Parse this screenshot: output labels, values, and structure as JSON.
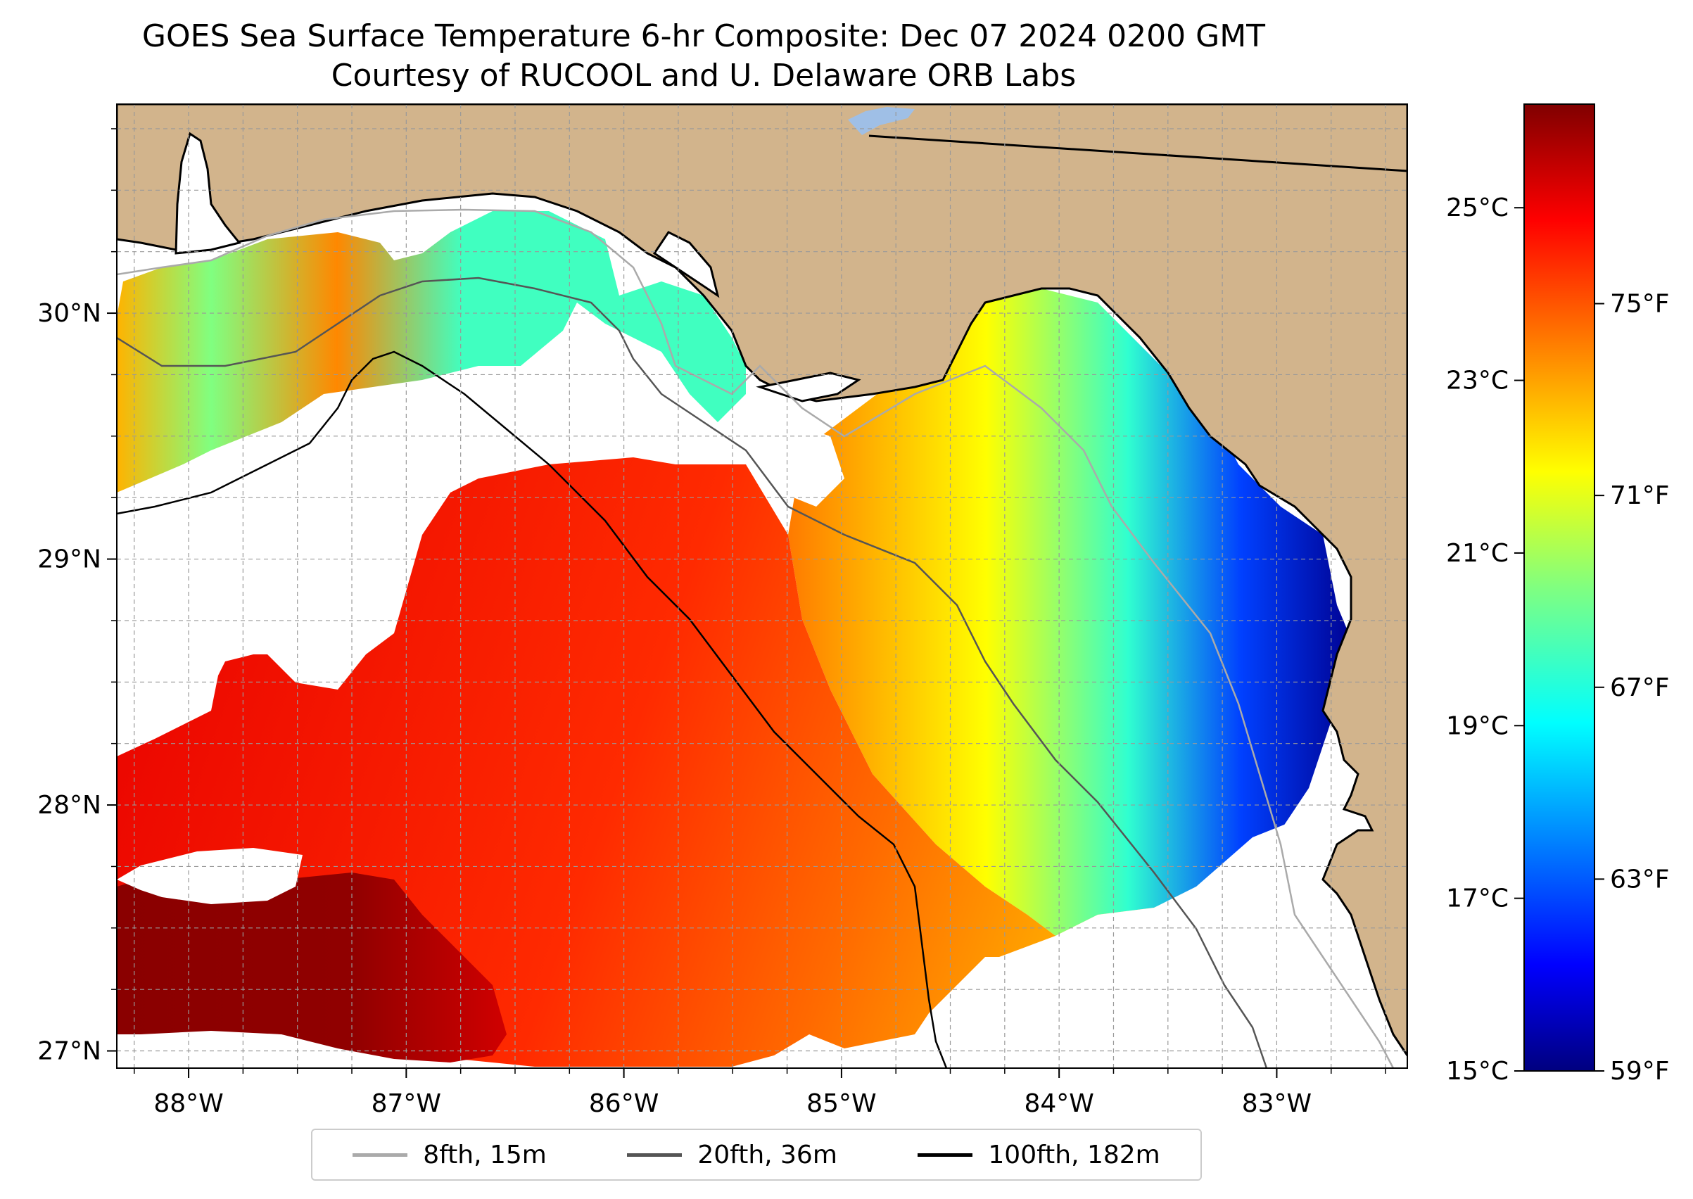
{
  "title": "GOES Sea Surface Temperature 6-hr Composite: Dec 07 2024 0200 GMT",
  "subtitle": "Courtesy of RUCOOL and U. Delaware ORB Labs",
  "map": {
    "land_color": "#d2b48c",
    "no_data_color": "#ffffff",
    "lon_ticks": [
      "88°W",
      "87°W",
      "86°W",
      "85°W",
      "84°W",
      "83°W"
    ],
    "lat_ticks": [
      "30°N",
      "29°N",
      "28°N",
      "27°N"
    ],
    "lon_values": [
      -88,
      -87,
      -86,
      -85,
      -84,
      -83
    ],
    "lat_values": [
      30,
      29,
      28,
      27
    ],
    "lon_range": [
      -88.33,
      -82.4
    ],
    "lat_range": [
      26.93,
      30.85
    ],
    "gridlines": true,
    "gridline_style": "dashed"
  },
  "colorbar": {
    "colormap": "jet",
    "celsius_ticks": [
      "25°C",
      "23°C",
      "21°C",
      "19°C",
      "17°C",
      "15°C"
    ],
    "celsius_values": [
      25,
      23,
      21,
      19,
      17,
      15
    ],
    "fahrenheit_ticks": [
      "75°F",
      "71°F",
      "67°F",
      "63°F",
      "59°F"
    ],
    "fahrenheit_values": [
      75,
      71,
      67,
      63,
      59
    ],
    "range_c": [
      15,
      26.2
    ]
  },
  "legend": {
    "items": [
      {
        "label": "8fth, 15m",
        "color": "#aaaaaa"
      },
      {
        "label": "20fth, 36m",
        "color": "#555555"
      },
      {
        "label": "100fth, 182m",
        "color": "#000000"
      }
    ]
  }
}
